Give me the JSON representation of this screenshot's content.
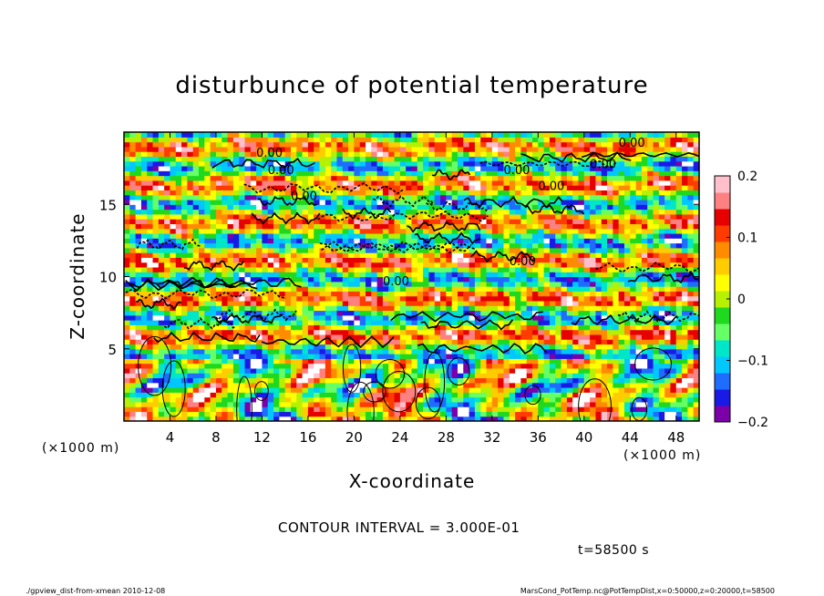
{
  "chart_data": {
    "type": "heatmap",
    "title": "disturbunce of potential temperature",
    "xlabel": "X-coordinate",
    "ylabel": "Z-coordinate",
    "x_unit_left": "(×1000 m)",
    "x_unit_right": "(×1000 m)",
    "xlim": [
      0,
      50
    ],
    "ylim": [
      0,
      20
    ],
    "x_ticks": [
      4,
      8,
      12,
      16,
      20,
      24,
      28,
      32,
      36,
      40,
      44,
      48
    ],
    "y_ticks": [
      5,
      10,
      15
    ],
    "colorbar": {
      "range": [
        -0.2,
        0.2
      ],
      "tick_values": [
        0.2,
        0.1,
        0,
        -0.1,
        -0.2
      ],
      "tick_labels": [
        "0.2",
        "0.1",
        "0",
        "−0.1",
        "−0.2"
      ],
      "colors": [
        "#7b00a8",
        "#1a1ae6",
        "#1f6dff",
        "#00c8ff",
        "#00e6c8",
        "#66ff66",
        "#1fd91f",
        "#b7f000",
        "#ffff00",
        "#ffcc00",
        "#ff8c00",
        "#ff3c00",
        "#e60000",
        "#ff8080",
        "#ffc0cb"
      ]
    },
    "contour_interval_label": "CONTOUR INTERVAL = 3.000E-01",
    "contour_labels": [
      "0.00",
      "0.00",
      "0.00",
      "0.00",
      "0.00",
      "0.00",
      "0.00",
      "0.00",
      "0.00"
    ],
    "time_label": "t=58500 s"
  },
  "footer": {
    "left": "./gpview_dist-from-xmean  2010-12-08",
    "right": "MarsCond_PotTemp.nc@PotTempDist,x=0:50000,z=0:20000,t=58500"
  }
}
